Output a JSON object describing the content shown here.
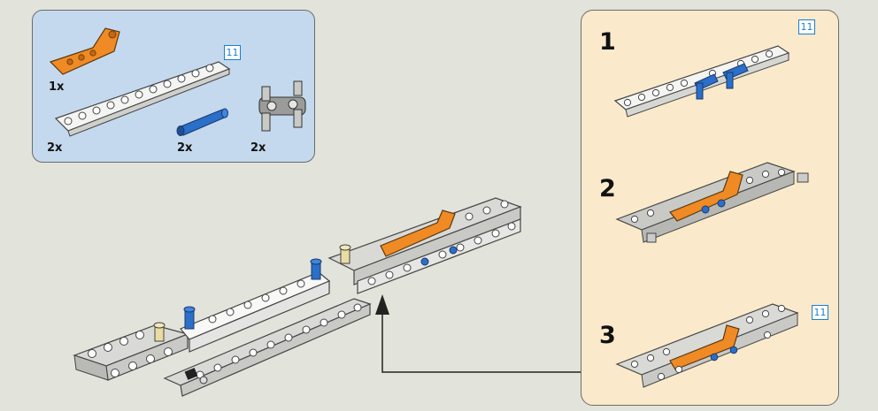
{
  "parts_list": {
    "items": [
      {
        "quantity": "1x",
        "part": "orange bent liftarm",
        "color": "#f08a24"
      },
      {
        "quantity": "2x",
        "part": "white 11-hole liftarm",
        "color": "#f4f4f2",
        "length_badge": "11"
      },
      {
        "quantity": "2x",
        "part": "blue axle pin",
        "color": "#2a6fc9"
      },
      {
        "quantity": "2x",
        "part": "gray double pin connector",
        "color": "#9b9c9a"
      }
    ]
  },
  "steps": [
    {
      "number": "1",
      "length_badge": "11"
    },
    {
      "number": "2"
    },
    {
      "number": "3",
      "length_badge": "11"
    }
  ],
  "colors": {
    "background": "#e2e3da",
    "parts_box": "#c4d9ee",
    "steps_box": "#faeacb",
    "badge": "#1a7fd0",
    "orange": "#f08a24",
    "blue": "#2a6fc9",
    "white_beam": "#f4f4f2",
    "gray_beam": "#c9cac6"
  }
}
